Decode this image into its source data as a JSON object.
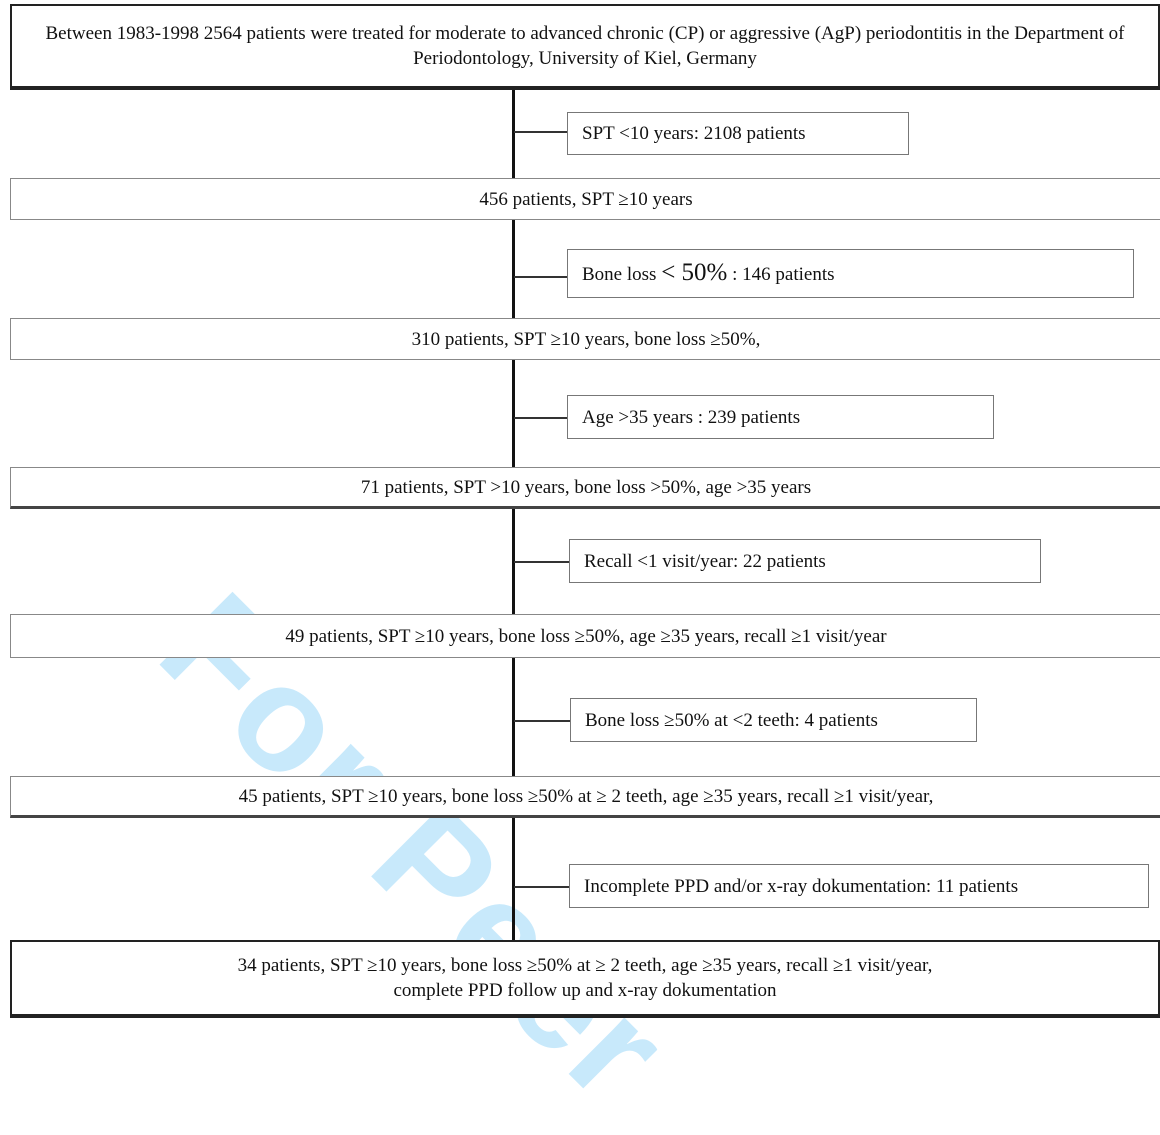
{
  "watermark": "For Peer",
  "steps": [
    {
      "main": "Between 1983-1998 2564 patients were treated for moderate to advanced chronic (CP) or aggressive (AgP) periodontitis in the Department of Periodontology, University of Kiel, Germany",
      "excluded": "SPT <10 years:  2108 patients"
    },
    {
      "main": "456 patients, SPT ≥10 years",
      "excluded_before": "Bone loss ",
      "excluded_big": "< 50%",
      "excluded_after": " : 146 patients"
    },
    {
      "main": "310 patients, SPT ≥10 years, bone loss ≥50%,",
      "excluded": "Age >35 years : 239 patients"
    },
    {
      "main": "71 patients, SPT >10 years, bone loss >50%, age >35 years",
      "excluded": "Recall <1 visit/year: 22 patients"
    },
    {
      "main": "49 patients, SPT ≥10 years, bone loss ≥50%, age ≥35 years, recall ≥1 visit/year",
      "excluded": "Bone loss  ≥50% at <2 teeth: 4 patients"
    },
    {
      "main": "45 patients, SPT ≥10 years, bone loss ≥50% at ≥ 2 teeth, age ≥35 years, recall ≥1 visit/year,",
      "excluded": "Incomplete PPD and/or x-ray dokumentation: 11 patients"
    },
    {
      "main_line1": "34 patients, SPT ≥10 years, bone loss ≥50% at ≥ 2 teeth, age ≥35 years, recall ≥1 visit/year,",
      "main_line2": "complete PPD follow up and x-ray dokumentation"
    }
  ]
}
